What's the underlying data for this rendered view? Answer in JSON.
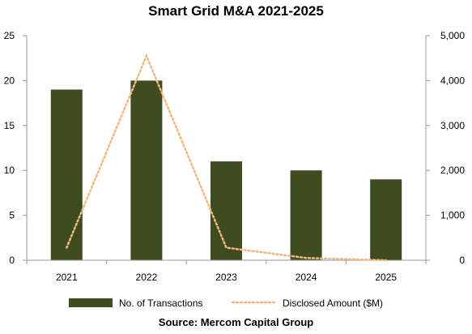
{
  "chart_data": {
    "type": "bar",
    "title": "Smart Grid M&A 2021-2025",
    "categories": [
      "2021",
      "2022",
      "2023",
      "2024",
      "2025"
    ],
    "series": [
      {
        "name": "No. of Transactions",
        "kind": "bar",
        "axis": "left",
        "color": "#3e4c20",
        "values": [
          19,
          20,
          11,
          10,
          9
        ]
      },
      {
        "name": "Disclosed Amount ($M)",
        "kind": "line",
        "style": "dotted",
        "axis": "right",
        "color": "#f2b880",
        "values": [
          280,
          4550,
          280,
          50,
          0
        ]
      }
    ],
    "y_left": {
      "lim": [
        0,
        25
      ],
      "ticks": [
        "0",
        "5",
        "10",
        "15",
        "20",
        "25"
      ]
    },
    "y_right": {
      "lim": [
        0,
        5000
      ],
      "ticks": [
        "0",
        "1,000",
        "2,000",
        "3,000",
        "4,000",
        "5,000"
      ]
    },
    "grid": false,
    "legend": "bottom",
    "source": "Source: Mercom Capital Group"
  }
}
